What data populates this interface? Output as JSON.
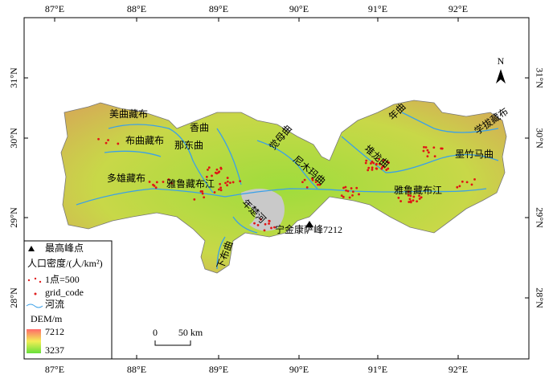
{
  "map": {
    "lon_labels": [
      "87°E",
      "88°E",
      "89°E",
      "90°E",
      "91°E",
      "92°E"
    ],
    "lat_labels": [
      "31°N",
      "30°N",
      "29°N",
      "28°N"
    ],
    "north": "N",
    "rivers": [
      "美曲藏布",
      "布曲藏布",
      "香曲",
      "那东曲",
      "觉母曲",
      "年曲",
      "学拔藏布",
      "堆龙曲",
      "墨竹马曲",
      "尼木玛曲",
      "雅鲁藏布江",
      "雅鲁藏布江",
      "多雄藏布",
      "年楚河",
      "下布曲"
    ],
    "peak_label": "宁金康萨峰7212",
    "legend": {
      "peak": "最高峰点",
      "density_title": "人口密度/(人/km²)",
      "dot": "1点=500",
      "grid_code": "grid_code",
      "river": "河流",
      "dem_title": "DEM/m",
      "dem_max": "7212",
      "dem_min": "3237"
    },
    "scale": {
      "zero": "0",
      "label": "50 km"
    }
  }
}
